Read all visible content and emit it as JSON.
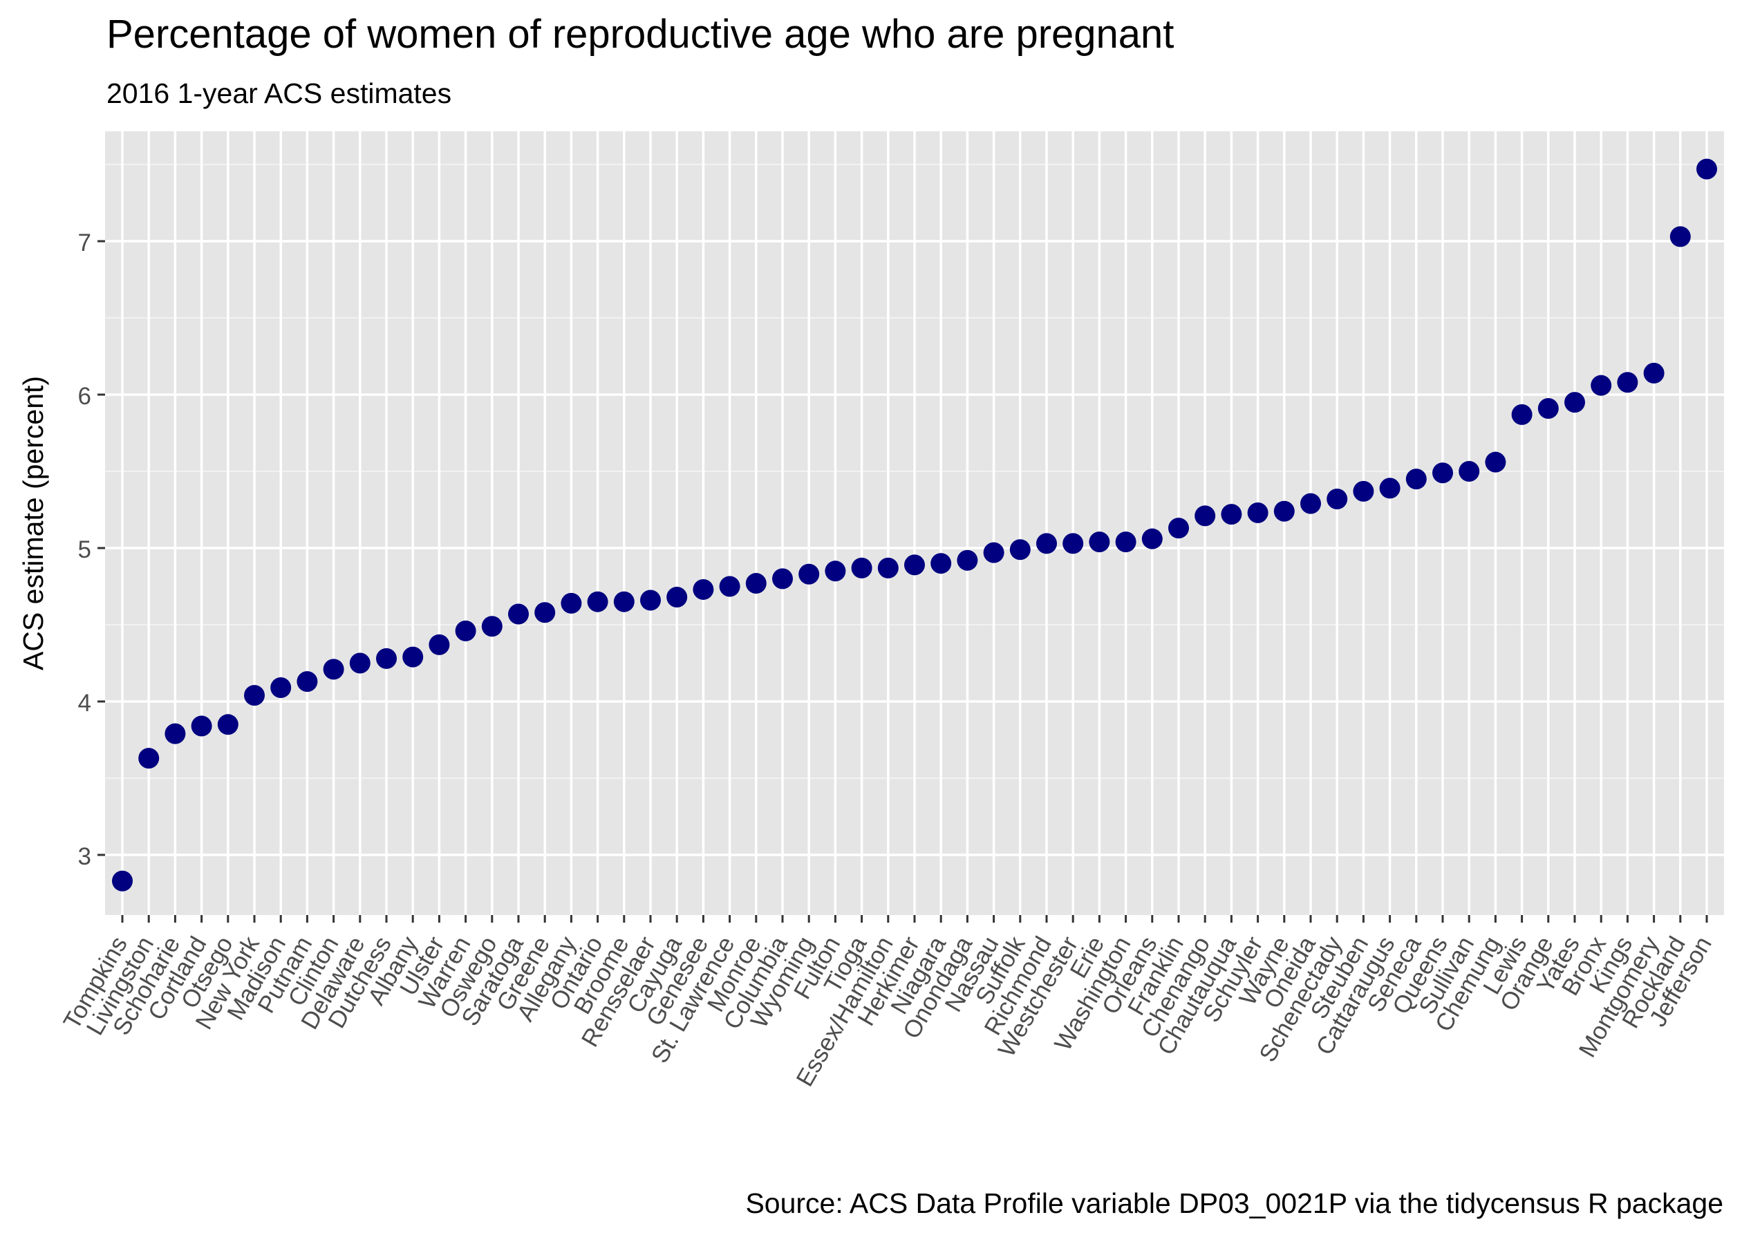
{
  "chart_data": {
    "type": "scatter",
    "title": "Percentage of women of reproductive age who are pregnant",
    "subtitle": "2016 1-year ACS estimates",
    "caption": "Source: ACS Data Profile variable DP03_0021P via the tidycensus R package",
    "xlabel": "",
    "ylabel": "ACS estimate (percent)",
    "ylim": [
      2.6,
      7.6
    ],
    "yticks": [
      3,
      4,
      5,
      6,
      7
    ],
    "grid": true,
    "point_color": "#000080",
    "panel_background": "#e5e5e5",
    "categories": [
      "Tompkins",
      "Livingston",
      "Schoharie",
      "Cortland",
      "Otsego",
      "New York",
      "Madison",
      "Putnam",
      "Clinton",
      "Delaware",
      "Dutchess",
      "Albany",
      "Ulster",
      "Warren",
      "Oswego",
      "Saratoga",
      "Greene",
      "Allegany",
      "Ontario",
      "Broome",
      "Rensselaer",
      "Cayuga",
      "Genesee",
      "St. Lawrence",
      "Monroe",
      "Columbia",
      "Wyoming",
      "Fulton",
      "Tioga",
      "Essex/Hamilton",
      "Herkimer",
      "Niagara",
      "Onondaga",
      "Nassau",
      "Suffolk",
      "Richmond",
      "Westchester",
      "Erie",
      "Washington",
      "Orleans",
      "Franklin",
      "Chenango",
      "Chautauqua",
      "Schuyler",
      "Wayne",
      "Oneida",
      "Schenectady",
      "Steuben",
      "Cattaraugus",
      "Seneca",
      "Queens",
      "Sullivan",
      "Chemung",
      "Lewis",
      "Orange",
      "Yates",
      "Bronx",
      "Kings",
      "Montgomery",
      "Rockland",
      "Jefferson"
    ],
    "values": [
      2.83,
      3.63,
      3.79,
      3.84,
      3.85,
      4.04,
      4.09,
      4.13,
      4.21,
      4.25,
      4.28,
      4.29,
      4.37,
      4.46,
      4.49,
      4.57,
      4.58,
      4.64,
      4.65,
      4.65,
      4.66,
      4.68,
      4.73,
      4.75,
      4.77,
      4.8,
      4.83,
      4.85,
      4.87,
      4.87,
      4.89,
      4.9,
      4.92,
      4.97,
      4.99,
      5.03,
      5.03,
      5.04,
      5.04,
      5.06,
      5.13,
      5.21,
      5.22,
      5.23,
      5.24,
      5.29,
      5.32,
      5.37,
      5.39,
      5.45,
      5.49,
      5.5,
      5.56,
      5.87,
      5.91,
      5.95,
      6.06,
      6.08,
      6.14,
      7.03,
      7.47
    ]
  }
}
